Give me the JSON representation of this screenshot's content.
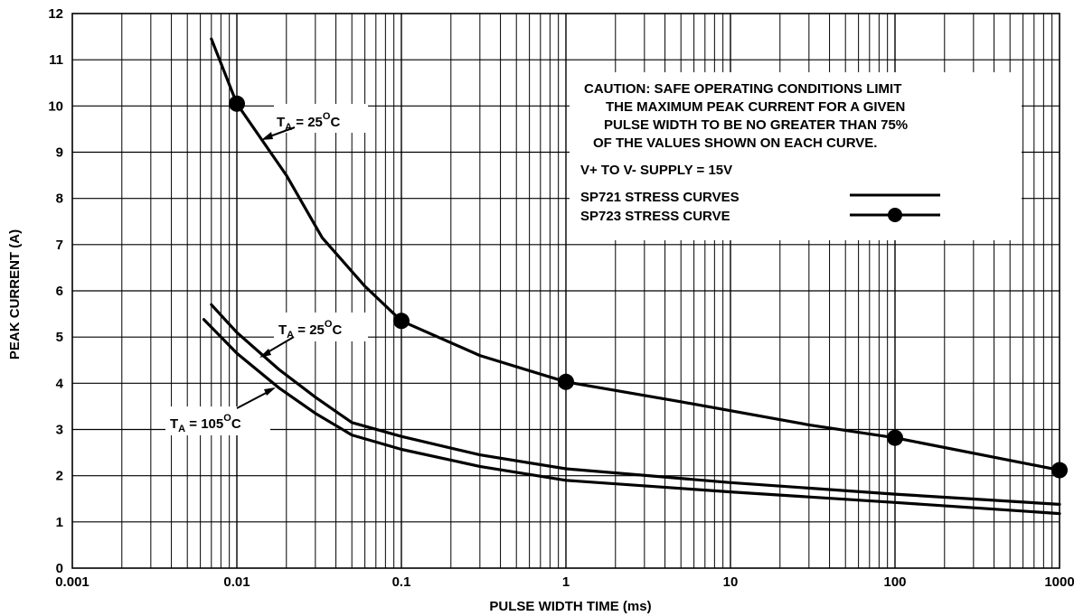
{
  "chart_data": {
    "type": "line",
    "xscale": "log",
    "xlabel": "PULSE WIDTH TIME (ms)",
    "ylabel": "PEAK CURRENT (A)",
    "xlim": [
      0.001,
      1000
    ],
    "ylim": [
      0,
      12
    ],
    "grid": true,
    "x_ticks": [
      "0.001",
      "0.01",
      "0.1",
      "1",
      "10",
      "100",
      "1000"
    ],
    "y_ticks": [
      "0",
      "1",
      "2",
      "3",
      "4",
      "5",
      "6",
      "7",
      "8",
      "9",
      "10",
      "11",
      "12"
    ],
    "series": [
      {
        "name": "SP723 STRESS CURVE",
        "style": "line-with-dots",
        "color": "#000000",
        "x": [
          0.007,
          0.01,
          0.02,
          0.033,
          0.06,
          0.1,
          0.3,
          1,
          5,
          30,
          100,
          1000
        ],
        "y": [
          11.45,
          10.05,
          8.5,
          7.15,
          6.1,
          5.35,
          4.6,
          4.03,
          3.6,
          3.1,
          2.82,
          2.12
        ],
        "markers_x": [
          0.01,
          0.1,
          1,
          100,
          1000
        ],
        "markers_y": [
          10.05,
          5.35,
          4.03,
          2.82,
          2.12
        ]
      },
      {
        "name": "SP721 STRESS CURVES",
        "style": "line",
        "color": "#000000",
        "x": [
          0.007,
          0.01,
          0.018,
          0.03,
          0.05,
          0.1,
          0.3,
          1,
          10,
          100,
          1000
        ],
        "y": [
          5.7,
          5.1,
          4.3,
          3.7,
          3.15,
          2.85,
          2.45,
          2.15,
          1.85,
          1.6,
          1.38
        ]
      },
      {
        "name": "SP721 STRESS CURVES",
        "style": "line",
        "color": "#000000",
        "x": [
          0.0063,
          0.01,
          0.018,
          0.03,
          0.05,
          0.1,
          0.3,
          1,
          10,
          100,
          1000
        ],
        "y": [
          5.38,
          4.65,
          3.9,
          3.35,
          2.88,
          2.57,
          2.2,
          1.9,
          1.65,
          1.42,
          1.18
        ]
      }
    ],
    "annotations": [
      {
        "label": "T",
        "sub": "A",
        "rest": " = 25",
        "sup": "O",
        "unit": "C"
      },
      {
        "label": "T",
        "sub": "A",
        "rest": " = 25",
        "sup": "O",
        "unit": "C"
      },
      {
        "label": "T",
        "sub": "A",
        "rest": " = 105",
        "sup": "O",
        "unit": "C"
      }
    ],
    "notes": [
      "CAUTION: SAFE OPERATING CONDITIONS LIMIT",
      "THE MAXIMUM PEAK CURRENT FOR A GIVEN",
      "PULSE WIDTH TO BE NO GREATER THAN 75%",
      "OF THE VALUES SHOWN ON EACH CURVE.",
      "V+ TO V- SUPPLY = 15V"
    ],
    "legend": {
      "placement": "top-right",
      "entries": [
        "SP721 STRESS CURVES",
        "SP723 STRESS CURVE"
      ]
    }
  }
}
